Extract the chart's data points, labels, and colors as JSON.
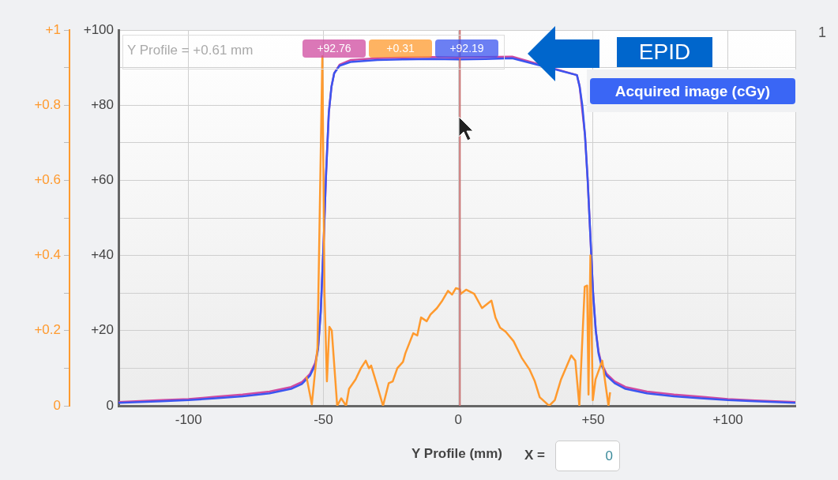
{
  "chart_data": {
    "type": "line",
    "xlabel": "Y Profile (mm)",
    "xlim": [
      -126,
      125
    ],
    "xticks": [
      -100,
      -50,
      0,
      {
        "value": 50,
        "label": "+50"
      },
      {
        "value": 100,
        "label": "+100"
      }
    ],
    "ylim": [
      0,
      100
    ],
    "yticks": [
      0,
      {
        "value": 20,
        "label": "+20"
      },
      {
        "value": 40,
        "label": "+40"
      },
      {
        "value": 60,
        "label": "+60"
      },
      {
        "value": 80,
        "label": "+80"
      },
      {
        "value": 100,
        "label": "+100"
      }
    ],
    "y2lim": [
      0,
      1
    ],
    "y2ticks": [
      0,
      {
        "value": 0.2,
        "label": "+0.2"
      },
      {
        "value": 0.4,
        "label": "+0.4"
      },
      {
        "value": 0.6,
        "label": "+0.6"
      },
      {
        "value": 0.8,
        "label": "+0.8"
      },
      {
        "value": 1,
        "label": "+1"
      }
    ],
    "grid": true,
    "legend": false,
    "marker": "none",
    "line_style": "solid",
    "ref_lines": [
      {
        "axis": "x",
        "value": 0.61,
        "color": "#c87070"
      }
    ],
    "annotations": [
      "Y Profile = +0.61 mm",
      "+92.76",
      "+0.31",
      "+92.19",
      "EPID",
      "Acquired image (cGy)",
      "X =",
      "0",
      "1"
    ],
    "series": [
      {
        "color": "#d04aa0",
        "x": [
          -126,
          -110,
          -100,
          -90,
          -80,
          -70,
          -62,
          -58,
          -55,
          -53,
          -52,
          -51,
          -50,
          -49,
          -48,
          -47,
          -46,
          -44,
          -40,
          -30,
          -20,
          -10,
          0,
          0.61,
          10,
          20,
          30,
          35,
          40,
          42,
          44,
          45,
          46,
          47,
          48,
          49,
          50,
          51,
          52,
          53,
          55,
          58,
          62,
          70,
          80,
          90,
          100,
          110,
          125
        ],
        "values": [
          1,
          1.5,
          1.8,
          2.4,
          3,
          3.8,
          5,
          6.3,
          8.5,
          11.5,
          15.5,
          25,
          42,
          62,
          78,
          85,
          88.5,
          90.8,
          92,
          92.5,
          92.7,
          92.8,
          92.7,
          92.76,
          92.8,
          92.9,
          null,
          null,
          null,
          null,
          88,
          85,
          null,
          72,
          60,
          45,
          30,
          20,
          14.5,
          11.5,
          8.5,
          6.5,
          5,
          3.8,
          3,
          2.4,
          1.8,
          1.4,
          1
        ]
      },
      {
        "color": "#ff9a2e",
        "axis": "y2",
        "x": [
          -56.3,
          -54.3,
          -52.2,
          -50.4,
          -49.6,
          -48.7,
          -47.8,
          -46.9,
          -44.9,
          -43.4,
          -41.6,
          -40.5,
          -38.1,
          -36.1,
          -34.3,
          -33.1,
          -32.3,
          -30.2,
          -27.9,
          -25.8,
          -24.3,
          -22.6,
          -20.5,
          -19.6,
          -16.7,
          -15.2,
          -13.8,
          -11.7,
          -10.3,
          -7.9,
          -5.9,
          -3.8,
          -2.3,
          -0.9,
          0.61,
          0.9,
          2.9,
          5.9,
          8.8,
          12.3,
          13.8,
          15.5,
          17.6,
          20.5,
          23.5,
          26.4,
          28.4,
          30.2,
          33.7,
          35.8,
          38.1,
          41.9,
          43.4,
          44.9,
          46.9,
          47.8,
          48.3,
          49,
          49.9,
          50.9,
          53.4,
          55.7,
          56.3
        ],
        "values": [
          0.078,
          0.004,
          0.155,
          0.93,
          0.3,
          0.065,
          0.21,
          0.2,
          0,
          0.02,
          0,
          0.045,
          0.07,
          0.1,
          0.12,
          0.1,
          0.107,
          0.057,
          0,
          0.06,
          0.065,
          0.1,
          0.117,
          0.14,
          0.193,
          0.187,
          0.235,
          0.225,
          0.243,
          0.26,
          0.28,
          0.306,
          0.296,
          0.313,
          0.31,
          0.298,
          0.309,
          0.298,
          0.26,
          0.28,
          0.235,
          0.208,
          0.197,
          0.172,
          0.128,
          0.097,
          0.065,
          0.023,
          0,
          0.015,
          0.07,
          0.134,
          0.12,
          0,
          0.317,
          0.32,
          0.03,
          0.4,
          0.015,
          0.07,
          0.12,
          0,
          0.036
        ]
      },
      {
        "color": "#3b55f0",
        "x": [
          -126,
          -110,
          -100,
          -90,
          -80,
          -70,
          -62,
          -58,
          -55,
          -53,
          -52,
          -51,
          -50,
          -49,
          -48,
          -47,
          -46,
          -44,
          -40,
          -30,
          -20,
          -10,
          0,
          0.61,
          10,
          20,
          30,
          35,
          40,
          42,
          44,
          45,
          46,
          47,
          48,
          49,
          50,
          51,
          52,
          53,
          55,
          58,
          62,
          70,
          80,
          90,
          100,
          110,
          125
        ],
        "values": [
          0.8,
          1.2,
          1.5,
          2,
          2.5,
          3.3,
          4.5,
          5.8,
          8,
          11,
          15,
          25,
          42,
          62,
          78,
          85,
          88.5,
          90.5,
          91.5,
          92,
          92.2,
          92.3,
          92.2,
          92.19,
          92.3,
          92.5,
          null,
          null,
          null,
          null,
          88,
          85,
          80,
          72,
          60,
          45,
          30,
          20,
          14,
          11,
          8,
          6,
          4.5,
          3.3,
          2.5,
          2,
          1.5,
          1.2,
          0.8
        ]
      }
    ]
  }
}
